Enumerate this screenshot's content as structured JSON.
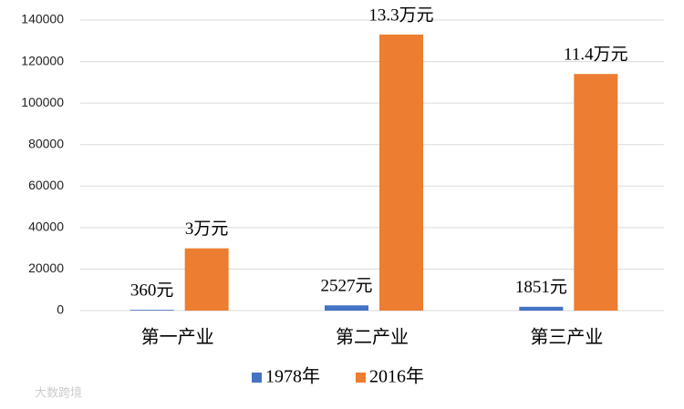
{
  "chart_data": {
    "type": "bar",
    "categories": [
      "第一产业",
      "第二产业",
      "第三产业"
    ],
    "series": [
      {
        "name": "1978年",
        "color": "#4472c4",
        "values": [
          360,
          2527,
          1851
        ],
        "value_labels": [
          "360元",
          "2527元",
          "1851元"
        ]
      },
      {
        "name": "2016年",
        "color": "#ed7d31",
        "values": [
          30000,
          133000,
          114000
        ],
        "value_labels": [
          "3万元",
          "13.3万元",
          "11.4万元"
        ]
      }
    ],
    "ylim": [
      0,
      140000
    ],
    "yticks": [
      0,
      20000,
      40000,
      60000,
      80000,
      100000,
      120000,
      140000
    ],
    "grid": true,
    "legend": "bottom",
    "watermark": "大数跨境"
  }
}
